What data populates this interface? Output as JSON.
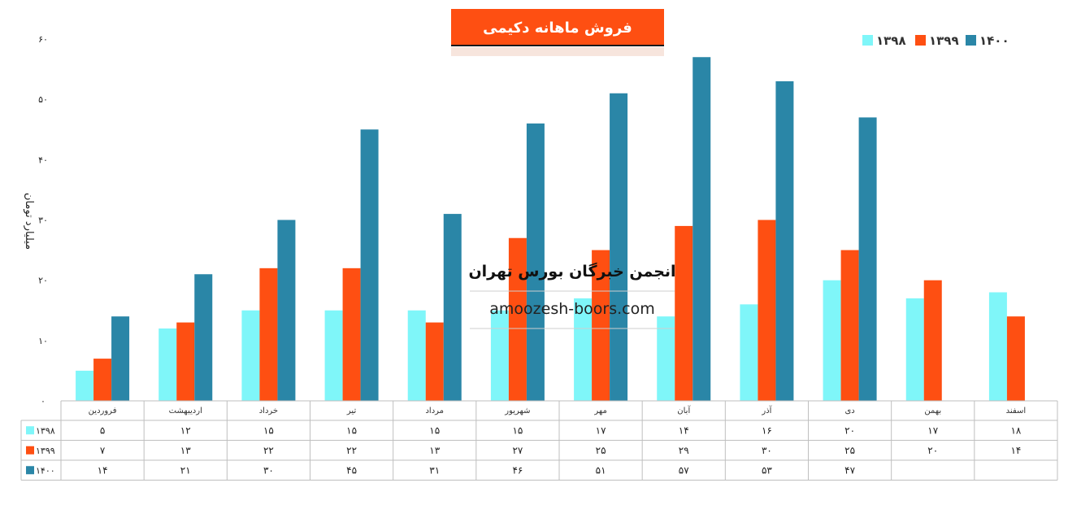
{
  "chart_data": {
    "type": "bar",
    "title": "فروش ماهانه دکیمی",
    "ylabel": "میلیارد تومان",
    "ylim": [
      0,
      60
    ],
    "yticks": [
      "۰",
      "۱۰",
      "۲۰",
      "۳۰",
      "۴۰",
      "۵۰",
      "۶۰"
    ],
    "ytick_values": [
      0,
      10,
      20,
      30,
      40,
      50,
      60
    ],
    "grid": false,
    "legend_position": "top-right",
    "categories": [
      "فروردین",
      "اردیبهشت",
      "خرداد",
      "تیر",
      "مرداد",
      "شهریور",
      "مهر",
      "آبان",
      "آذر",
      "دی",
      "بهمن",
      "اسفند"
    ],
    "series": [
      {
        "name": "۱۳۹۸",
        "color": "#7ff6f9",
        "values": [
          5,
          12,
          15,
          15,
          15,
          15,
          17,
          14,
          16,
          20,
          17,
          18
        ],
        "display": [
          "۵",
          "۱۲",
          "۱۵",
          "۱۵",
          "۱۵",
          "۱۵",
          "۱۷",
          "۱۴",
          "۱۶",
          "۲۰",
          "۱۷",
          "۱۸"
        ]
      },
      {
        "name": "۱۳۹۹",
        "color": "#fe4f12",
        "values": [
          7,
          13,
          22,
          22,
          13,
          27,
          25,
          29,
          30,
          25,
          20,
          14
        ],
        "display": [
          "۷",
          "۱۳",
          "۲۲",
          "۲۲",
          "۱۳",
          "۲۷",
          "۲۵",
          "۲۹",
          "۳۰",
          "۲۵",
          "۲۰",
          "۱۴"
        ]
      },
      {
        "name": "۱۴۰۰",
        "color": "#2a86a7",
        "values": [
          14,
          21,
          30,
          45,
          31,
          46,
          51,
          57,
          53,
          47,
          null,
          null
        ],
        "display": [
          "۱۴",
          "۲۱",
          "۳۰",
          "۴۵",
          "۳۱",
          "۴۶",
          "۵۱",
          "۵۷",
          "۵۳",
          "۴۷",
          "",
          ""
        ]
      }
    ],
    "data_table": true
  },
  "watermark": {
    "title": "انجمن خبرگان بورس تهران",
    "url": "amoozesh-boors.com"
  },
  "colors": {
    "title_bg": "#fe4f12",
    "axis": "#bfbfbf"
  }
}
